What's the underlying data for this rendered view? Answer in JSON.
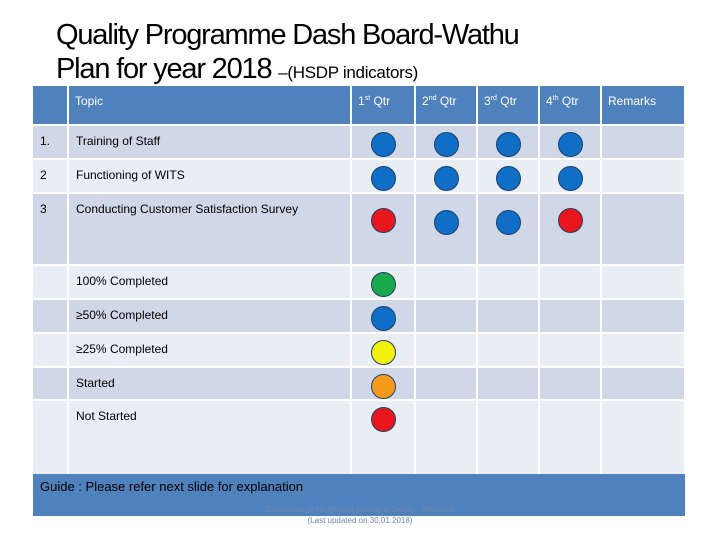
{
  "title": {
    "line1": "Quality Programme Dash Board-Wathu",
    "line2": "Plan for year 2018 ",
    "sub": "–(HSDP indicators)"
  },
  "header": {
    "topic": "Topic",
    "q1": "1",
    "q1_sup": "st",
    "q1_rest": " Qtr",
    "q2": "2",
    "q2_sup": "nd",
    "q2_rest": " Qtr",
    "q3": "3",
    "q3_sup": "rd",
    "q3_rest": " Qtr",
    "q4": "4",
    "q4_sup": "th",
    "q4_rest": " Qtr",
    "remarks": "Remarks"
  },
  "rows": [
    {
      "num": "1.",
      "topic": "Training of Staff",
      "dots": [
        "blue",
        "blue",
        "blue",
        "blue"
      ]
    },
    {
      "num": "2",
      "topic": "Functioning of WITS",
      "dots": [
        "blue",
        "blue",
        "blue",
        "blue"
      ]
    },
    {
      "num": "3",
      "topic": "Conducting Customer Satisfaction Survey",
      "dots": [
        "red",
        "blue",
        "blue",
        "red"
      ]
    }
  ],
  "legend": [
    {
      "label": "100% Completed",
      "color": "green"
    },
    {
      "label": "≥50% Completed",
      "color": "blue"
    },
    {
      "label": "≥25% Completed",
      "color": "yellow"
    },
    {
      "label": "Started",
      "color": "orange"
    },
    {
      "label": "Not Started",
      "color": "red"
    }
  ],
  "colors": {
    "blue": "#0f6fc6",
    "red": "#e8171d",
    "green": "#19a84b",
    "yellow": "#f4f10c",
    "orange": "#f59a1b"
  },
  "guide": "Guide : Please refer next slide for explanation",
  "footer": {
    "line1": "Directorate of Healthcare Quality & Safety - Version 6",
    "line2": "(Last updated on 30.01.2018)"
  }
}
